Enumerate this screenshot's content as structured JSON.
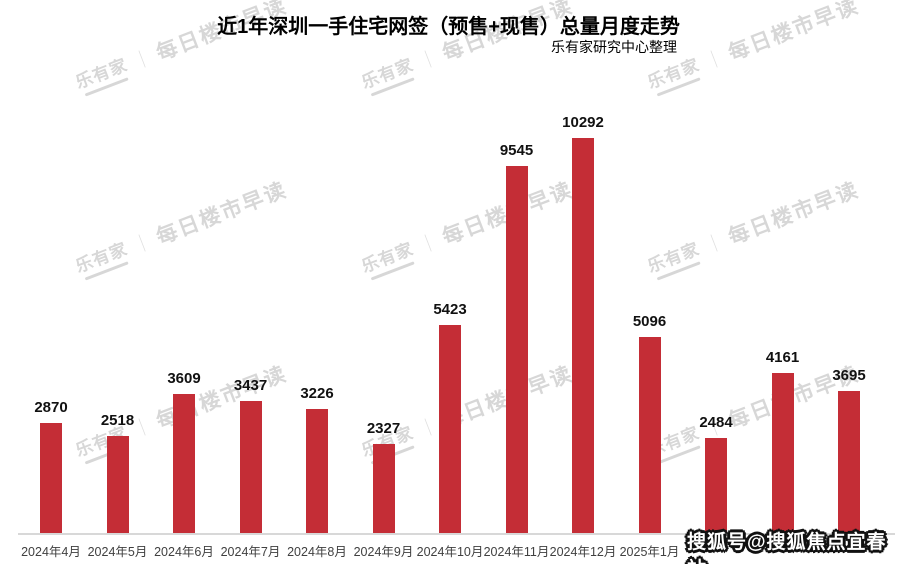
{
  "header": {
    "title": "近1年深圳一手住宅网签（预售+现售）总量月度走势",
    "subtitle": "乐有家研究中心整理"
  },
  "chart_data": {
    "type": "bar",
    "title": "近1年深圳一手住宅网签（预售+现售）总量月度走势",
    "source_note": "乐有家研究中心整理",
    "categories": [
      "2024年4月",
      "2024年5月",
      "2024年6月",
      "2024年7月",
      "2024年8月",
      "2024年9月",
      "2024年10月",
      "2024年11月",
      "2024年12月",
      "2025年1月",
      "",
      "",
      ""
    ],
    "values": [
      2870,
      2518,
      3609,
      3437,
      3226,
      2327,
      5423,
      9545,
      10292,
      5096,
      2484,
      4161,
      3695
    ],
    "xlabel": "",
    "ylabel": "",
    "ylim": [
      0,
      10600
    ],
    "grid": false,
    "legend": false,
    "data_labels": true,
    "bar_color": "#c42d36",
    "value_label_color": "#111111",
    "tick_label_color": "#404040",
    "axis_line_color": "#d8d8d8"
  },
  "watermarks": {
    "brand": "乐有家",
    "divider": "｜",
    "slogan": "每日楼市早读",
    "color": "#d7d7d7"
  },
  "badge": {
    "text": "搜狐号@搜狐焦点宜春站",
    "fill_color": "#ffffff",
    "outline_color": "#111111"
  }
}
